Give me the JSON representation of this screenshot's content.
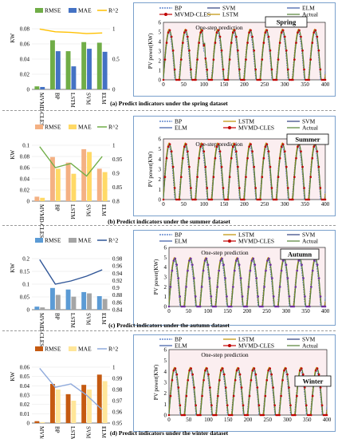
{
  "colors": {
    "rmse_1": "#70ad47",
    "mae_1": "#4472c4",
    "r2_1": "#ffc000",
    "rmse_2": "#f4b183",
    "mae_2": "#ffd966",
    "r2_2": "#70ad47",
    "rmse_3": "#5b9bd5",
    "mae_3": "#a5a5a5",
    "r2_3": "#2f5597",
    "rmse_4": "#c55a11",
    "mae_4": "#ffe699",
    "r2_4": "#8faadc",
    "bp": "#4472c4",
    "lstm": "#bf9000",
    "svm": "#2f3f7f",
    "elm": "#3b5ba5",
    "mvmd": "#c00000",
    "actual": "#548235"
  },
  "chart_data": [
    {
      "type": "bar",
      "title": "Spring",
      "caption": "(a) Predict indicators under the spring dataset",
      "categories": [
        "MVMD-CLES",
        "BP",
        "LSTM",
        "SVM",
        "ELM"
      ],
      "series": [
        {
          "name": "RMSE",
          "values": [
            0.005,
            0.081,
            0.063,
            0.078,
            0.077
          ]
        },
        {
          "name": "MAE",
          "values": [
            0.004,
            0.063,
            0.038,
            0.067,
            0.062
          ]
        },
        {
          "name": "R^2",
          "axis": "right",
          "values": [
            0.995,
            0.95,
            0.94,
            0.92,
            0.93
          ]
        }
      ],
      "ylabel": "KW",
      "ylim": [
        0,
        0.1
      ],
      "y_ticks": [
        "0.08",
        "0.06",
        "0.04",
        "0.02",
        "0"
      ],
      "y2lim": [
        0,
        1
      ],
      "y2_ticks": [
        "1",
        "0.5",
        "0"
      ]
    },
    {
      "type": "line",
      "title": "Spring",
      "annotation": "One-step prediction",
      "legend": [
        "BP",
        "SVM",
        "ELM",
        "MVMD-CLES",
        "LSTM",
        "Actual"
      ],
      "ylabel": "PV power(KW)",
      "xlim": [
        0,
        400
      ],
      "ylim": [
        0,
        6
      ],
      "x_ticks": [
        "0",
        "50",
        "100",
        "150",
        "200",
        "250",
        "300",
        "350",
        "400"
      ],
      "y_ticks": [
        "0",
        "1",
        "2",
        "3",
        "4",
        "5",
        "6"
      ]
    },
    {
      "type": "bar",
      "title": "Summer",
      "caption": "(b) Predict indicators under the summer dataset",
      "categories": [
        "MVMD-CLES",
        "BP",
        "LSTM",
        "SVM",
        "ELM"
      ],
      "series": [
        {
          "name": "RMSE",
          "values": [
            0.008,
            0.079,
            0.069,
            0.093,
            0.058
          ]
        },
        {
          "name": "MAE",
          "values": [
            0.006,
            0.058,
            0.049,
            0.088,
            0.052
          ]
        },
        {
          "name": "R^2",
          "axis": "right",
          "values": [
            0.995,
            0.92,
            0.935,
            0.89,
            0.96
          ]
        }
      ],
      "ylabel": "KW",
      "ylim": [
        0,
        0.1
      ],
      "y_ticks": [
        "0.1",
        "0.08",
        "0.06",
        "0.04",
        "0.02",
        "0"
      ],
      "y2lim": [
        0.8,
        1
      ],
      "y2_ticks": [
        "1",
        "0.95",
        "0.9",
        "0.85",
        "0.8"
      ]
    },
    {
      "type": "line",
      "title": "Summer",
      "annotation": "One-step prediction",
      "legend": [
        "BP",
        "LSTM",
        "SVM",
        "ELM",
        "MVMD-CLES",
        "Actual"
      ],
      "ylabel": "PV power(KW)",
      "xlim": [
        0,
        400
      ],
      "ylim": [
        0,
        6
      ],
      "x_ticks": [
        "0",
        "50",
        "100",
        "150",
        "200",
        "250",
        "300",
        "350",
        "400"
      ],
      "y_ticks": [
        "0",
        "1",
        "2",
        "3",
        "4",
        "5",
        "6"
      ]
    },
    {
      "type": "bar",
      "title": "Autumn",
      "caption": "(c) Predict indicators under the autumn dataset",
      "categories": [
        "MVMD-CLES",
        "BP",
        "LSTM",
        "SVM",
        "ELM"
      ],
      "series": [
        {
          "name": "RMSE",
          "values": [
            0.012,
            0.085,
            0.079,
            0.069,
            0.053
          ]
        },
        {
          "name": "MAE",
          "values": [
            0.009,
            0.058,
            0.051,
            0.064,
            0.042
          ]
        },
        {
          "name": "R^2",
          "axis": "right",
          "values": [
            0.997,
            0.92,
            0.93,
            0.945,
            0.965
          ]
        }
      ],
      "ylabel": "KW",
      "ylim": [
        0,
        0.2
      ],
      "y_ticks": [
        "0.2",
        "0.15",
        "0.1",
        "0.05",
        "0"
      ],
      "y2lim": [
        0.84,
        1
      ],
      "y2_ticks": [
        "0.98",
        "0.96",
        "0.94",
        "0.92",
        "0.9",
        "0.88",
        "0.86",
        "0.84"
      ]
    },
    {
      "type": "line",
      "title": "Autumn",
      "annotation": "One-step prediction",
      "legend": [
        "BP",
        "LSTM",
        "SVM",
        "ELM",
        "MVMD-CLES",
        "Actual"
      ],
      "ylabel": "PV power(KW)",
      "xlim": [
        0,
        400
      ],
      "ylim": [
        0,
        6
      ],
      "x_ticks": [
        "0",
        "50",
        "100",
        "150",
        "200",
        "250",
        "300",
        "350",
        "400"
      ],
      "y_ticks": [
        "0",
        "1",
        "2",
        "3",
        "4",
        "5",
        "6"
      ]
    },
    {
      "type": "bar",
      "title": "Winter",
      "caption": "(d) Predict indicators under the winter dataset",
      "categories": [
        "MVMD-CLES",
        "BP",
        "LSTM",
        "SVM",
        "ELM"
      ],
      "series": [
        {
          "name": "RMSE",
          "values": [
            0.002,
            0.042,
            0.031,
            0.041,
            0.052
          ]
        },
        {
          "name": "MAE",
          "values": [
            0.001,
            0.036,
            0.024,
            0.036,
            0.045
          ]
        },
        {
          "name": "R^2",
          "axis": "right",
          "values": [
            0.999,
            0.982,
            0.985,
            0.975,
            0.962
          ]
        }
      ],
      "ylabel": "KW",
      "ylim": [
        0,
        0.06
      ],
      "y_ticks": [
        "0.06",
        "0.05",
        "0.04",
        "0.03",
        "0.02",
        "0.01",
        "0"
      ],
      "y2lim": [
        0.95,
        1
      ],
      "y2_ticks": [
        "1",
        "0.99",
        "0.98",
        "0.97",
        "0.96",
        "0.95"
      ]
    },
    {
      "type": "line",
      "title": "Winter",
      "annotation": "One-step prediction",
      "legend": [
        "BP",
        "LSTM",
        "SVM",
        "ELM",
        "MVMD-CLES",
        "Actual"
      ],
      "ylabel": "PV power(KW)",
      "xlim": [
        0,
        400
      ],
      "ylim": [
        0,
        6
      ],
      "x_ticks": [
        "0",
        "50",
        "100",
        "150",
        "200",
        "250",
        "300",
        "350",
        "400"
      ],
      "y_ticks": [
        "0",
        "1",
        "2",
        "3",
        "4",
        "5",
        "6"
      ]
    }
  ]
}
